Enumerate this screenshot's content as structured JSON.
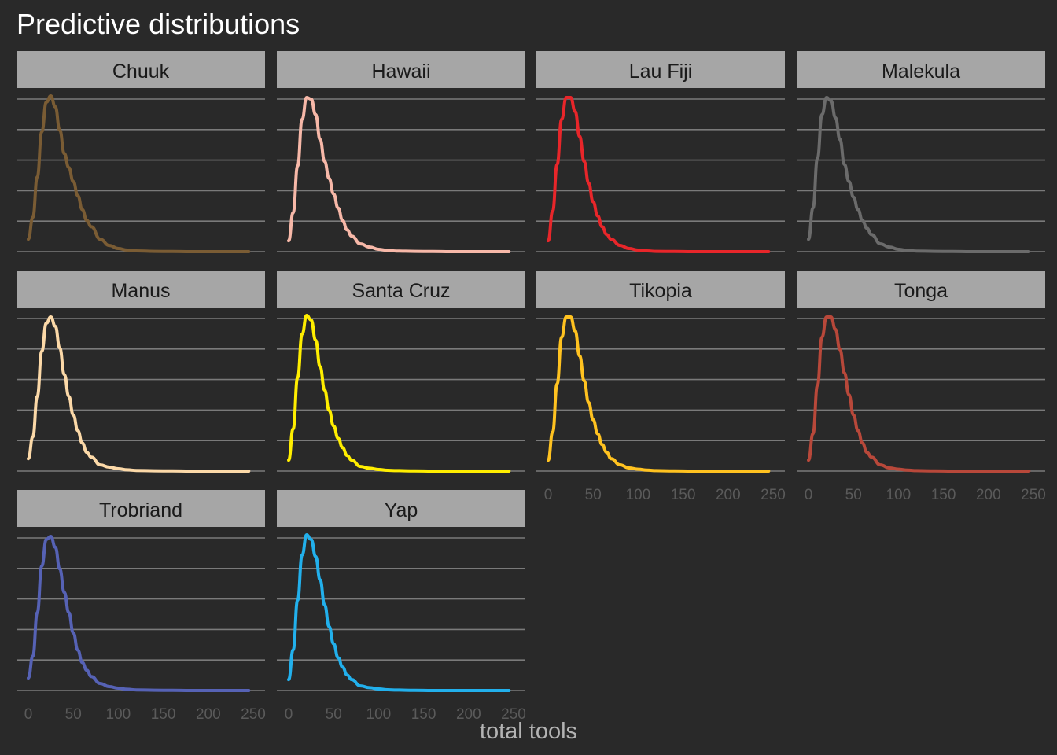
{
  "chart_data": {
    "type": "line",
    "title": "Predictive distributions",
    "xlabel": "total tools",
    "ylabel": "",
    "xlim": [
      0,
      250
    ],
    "x_ticks": [
      0,
      50,
      100,
      150,
      200,
      250
    ],
    "y_ticks_visible": false,
    "grid": "horizontal major only",
    "facets_layout": {
      "ncol": 4,
      "nrow": 3
    },
    "x": [
      0,
      5,
      10,
      15,
      20,
      25,
      30,
      35,
      40,
      45,
      50,
      55,
      60,
      65,
      70,
      80,
      90,
      100,
      110,
      120,
      140,
      160,
      180,
      200,
      220,
      245
    ],
    "series": [
      {
        "name": "Chuuk",
        "color": "#7a5c34",
        "values": [
          0.08,
          0.22,
          0.48,
          0.77,
          0.96,
          1.0,
          0.93,
          0.78,
          0.63,
          0.54,
          0.45,
          0.36,
          0.27,
          0.2,
          0.16,
          0.08,
          0.04,
          0.02,
          0.01,
          0.005,
          0.002,
          0.001,
          0.0,
          0.0,
          0.0,
          0.0
        ]
      },
      {
        "name": "Hawaii",
        "color": "#f7b8a8",
        "values": [
          0.07,
          0.25,
          0.55,
          0.85,
          0.99,
          0.98,
          0.88,
          0.72,
          0.58,
          0.47,
          0.37,
          0.28,
          0.2,
          0.14,
          0.1,
          0.05,
          0.03,
          0.015,
          0.008,
          0.004,
          0.002,
          0.001,
          0.0,
          0.0,
          0.0,
          0.0
        ]
      },
      {
        "name": "Lau Fiji",
        "color": "#e8262a",
        "values": [
          0.07,
          0.26,
          0.56,
          0.85,
          0.99,
          0.99,
          0.9,
          0.74,
          0.58,
          0.44,
          0.32,
          0.23,
          0.16,
          0.11,
          0.08,
          0.04,
          0.02,
          0.01,
          0.005,
          0.002,
          0.001,
          0.0,
          0.0,
          0.0,
          0.0,
          0.0
        ]
      },
      {
        "name": "Malekula",
        "color": "#6b6b6b",
        "values": [
          0.08,
          0.28,
          0.6,
          0.88,
          0.99,
          0.97,
          0.86,
          0.72,
          0.56,
          0.45,
          0.35,
          0.27,
          0.2,
          0.15,
          0.11,
          0.05,
          0.03,
          0.015,
          0.008,
          0.004,
          0.002,
          0.001,
          0.0,
          0.0,
          0.0,
          0.0
        ]
      },
      {
        "name": "Manus",
        "color": "#fcd9a8",
        "values": [
          0.08,
          0.22,
          0.48,
          0.77,
          0.95,
          0.99,
          0.93,
          0.79,
          0.62,
          0.48,
          0.36,
          0.26,
          0.18,
          0.12,
          0.09,
          0.04,
          0.025,
          0.015,
          0.008,
          0.004,
          0.002,
          0.001,
          0.0,
          0.0,
          0.0,
          0.0
        ]
      },
      {
        "name": "Santa Cruz",
        "color": "#ffee00",
        "values": [
          0.07,
          0.27,
          0.6,
          0.88,
          1.0,
          0.97,
          0.84,
          0.67,
          0.52,
          0.39,
          0.29,
          0.21,
          0.15,
          0.1,
          0.07,
          0.03,
          0.018,
          0.01,
          0.005,
          0.003,
          0.001,
          0.0,
          0.0,
          0.0,
          0.0,
          0.0
        ]
      },
      {
        "name": "Tikopia",
        "color": "#ffc220",
        "values": [
          0.07,
          0.25,
          0.56,
          0.86,
          0.99,
          0.99,
          0.9,
          0.74,
          0.58,
          0.44,
          0.33,
          0.24,
          0.17,
          0.12,
          0.08,
          0.04,
          0.02,
          0.012,
          0.006,
          0.003,
          0.001,
          0.0,
          0.0,
          0.0,
          0.0,
          0.0
        ]
      },
      {
        "name": "Tonga",
        "color": "#b8483a",
        "values": [
          0.07,
          0.24,
          0.55,
          0.86,
          0.99,
          0.99,
          0.91,
          0.78,
          0.63,
          0.49,
          0.36,
          0.26,
          0.18,
          0.12,
          0.09,
          0.04,
          0.02,
          0.012,
          0.006,
          0.003,
          0.001,
          0.0,
          0.0,
          0.0,
          0.0,
          0.0
        ]
      },
      {
        "name": "Trobriand",
        "color": "#5662b5",
        "values": [
          0.08,
          0.22,
          0.5,
          0.8,
          0.97,
          0.99,
          0.92,
          0.78,
          0.63,
          0.5,
          0.37,
          0.26,
          0.18,
          0.13,
          0.09,
          0.045,
          0.025,
          0.015,
          0.008,
          0.004,
          0.002,
          0.001,
          0.0,
          0.0,
          0.0,
          0.0
        ]
      },
      {
        "name": "Yap",
        "color": "#22b0ec",
        "values": [
          0.07,
          0.26,
          0.58,
          0.87,
          1.0,
          0.97,
          0.86,
          0.71,
          0.55,
          0.41,
          0.3,
          0.21,
          0.15,
          0.1,
          0.07,
          0.03,
          0.018,
          0.01,
          0.005,
          0.003,
          0.001,
          0.0,
          0.0,
          0.0,
          0.0,
          0.0
        ]
      }
    ],
    "x_axis_shown_on": [
      "Tikopia",
      "Tonga",
      "Trobriand",
      "Yap"
    ]
  }
}
